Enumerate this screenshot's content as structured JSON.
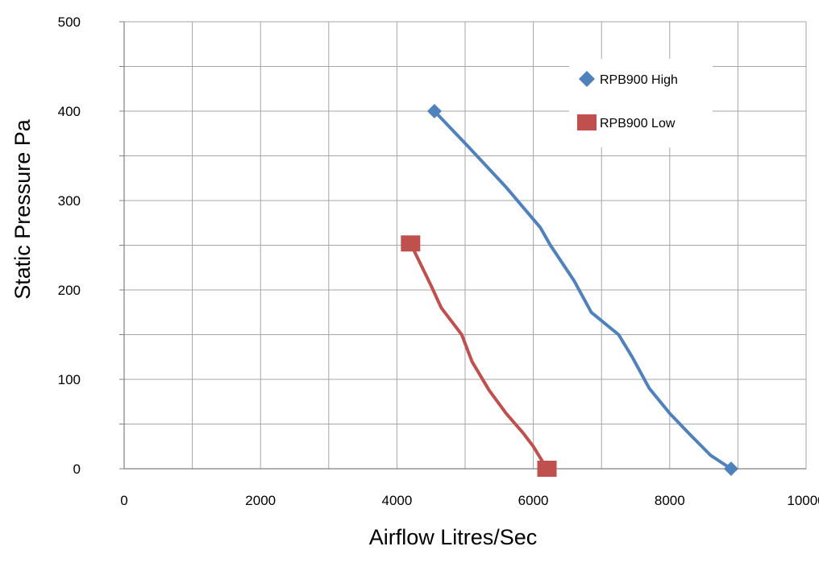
{
  "chart_data": {
    "type": "line",
    "title": "",
    "xlabel": "Airflow Litres/Sec",
    "ylabel": "Static Pressure Pa",
    "xlim": [
      0,
      10000
    ],
    "ylim": [
      0,
      500
    ],
    "x_ticks": [
      0,
      2000,
      4000,
      6000,
      8000,
      10000
    ],
    "y_ticks": [
      0,
      100,
      200,
      300,
      400,
      500
    ],
    "grid": true,
    "legend_position": "top-right",
    "series": [
      {
        "name": "RPB900 High",
        "color": "#4f81bd",
        "marker": "diamond",
        "points": [
          [
            4550,
            400
          ],
          [
            5050,
            360
          ],
          [
            5600,
            315
          ],
          [
            6100,
            270
          ],
          [
            6250,
            250
          ],
          [
            6600,
            210
          ],
          [
            6850,
            175
          ],
          [
            7250,
            150
          ],
          [
            7450,
            125
          ],
          [
            7700,
            90
          ],
          [
            8000,
            62
          ],
          [
            8300,
            38
          ],
          [
            8600,
            15
          ],
          [
            8900,
            0
          ]
        ]
      },
      {
        "name": "RPB900 Low",
        "color": "#c0504d",
        "marker": "square",
        "points": [
          [
            4200,
            252
          ],
          [
            4500,
            205
          ],
          [
            4650,
            180
          ],
          [
            4950,
            150
          ],
          [
            5100,
            120
          ],
          [
            5350,
            88
          ],
          [
            5600,
            62
          ],
          [
            5850,
            40
          ],
          [
            6000,
            25
          ],
          [
            6200,
            0
          ]
        ]
      }
    ]
  }
}
